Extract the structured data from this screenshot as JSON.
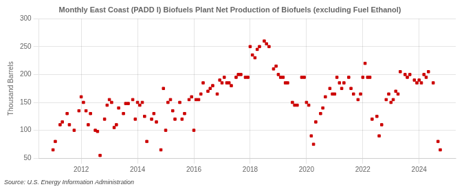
{
  "chart_data": {
    "type": "scatter",
    "title": "Monthly East Coast (PADD I) Biofuels Plant Net Production of Biofuels (excluding Fuel Ethanol)",
    "ylabel": "Thousand Barrels",
    "source": "Source: U.S. Energy Information Administration",
    "color": "#cc0000",
    "marker": "square",
    "grid": true,
    "ylim": [
      50,
      300
    ],
    "yticks": [
      50,
      100,
      150,
      200,
      250,
      300
    ],
    "xlim": [
      2010.5,
      2025.3
    ],
    "xticks": [
      2012,
      2014,
      2016,
      2018,
      2020,
      2022,
      2024
    ],
    "x": [
      2011.0,
      2011.08,
      2011.25,
      2011.33,
      2011.5,
      2011.58,
      2011.75,
      2011.92,
      2012.0,
      2012.08,
      2012.17,
      2012.25,
      2012.33,
      2012.5,
      2012.58,
      2012.67,
      2012.83,
      2012.92,
      2013.0,
      2013.08,
      2013.17,
      2013.25,
      2013.33,
      2013.5,
      2013.58,
      2013.67,
      2013.83,
      2013.92,
      2014.0,
      2014.08,
      2014.17,
      2014.25,
      2014.33,
      2014.5,
      2014.58,
      2014.67,
      2014.83,
      2014.92,
      2015.0,
      2015.08,
      2015.17,
      2015.25,
      2015.33,
      2015.5,
      2015.58,
      2015.67,
      2015.83,
      2015.92,
      2016.0,
      2016.08,
      2016.17,
      2016.25,
      2016.33,
      2016.5,
      2016.58,
      2016.67,
      2016.83,
      2016.92,
      2017.0,
      2017.08,
      2017.17,
      2017.25,
      2017.33,
      2017.5,
      2017.58,
      2017.67,
      2017.83,
      2017.92,
      2018.0,
      2018.08,
      2018.17,
      2018.25,
      2018.33,
      2018.5,
      2018.58,
      2018.67,
      2018.83,
      2018.92,
      2019.0,
      2019.08,
      2019.17,
      2019.25,
      2019.33,
      2019.5,
      2019.58,
      2019.67,
      2019.83,
      2019.92,
      2020.0,
      2020.08,
      2020.17,
      2020.25,
      2020.33,
      2020.5,
      2020.58,
      2020.67,
      2020.83,
      2020.92,
      2021.0,
      2021.08,
      2021.17,
      2021.25,
      2021.33,
      2021.5,
      2021.58,
      2021.67,
      2021.83,
      2021.92,
      2022.0,
      2022.08,
      2022.17,
      2022.25,
      2022.33,
      2022.5,
      2022.58,
      2022.67,
      2022.83,
      2022.92,
      2023.0,
      2023.08,
      2023.17,
      2023.25,
      2023.33,
      2023.5,
      2023.58,
      2023.67,
      2023.83,
      2023.92,
      2024.0,
      2024.08,
      2024.17,
      2024.25,
      2024.33,
      2024.5,
      2024.67,
      2024.75
    ],
    "values": [
      65,
      80,
      110,
      115,
      130,
      110,
      100,
      135,
      160,
      150,
      135,
      110,
      130,
      100,
      98,
      55,
      120,
      145,
      155,
      150,
      105,
      110,
      140,
      130,
      148,
      148,
      155,
      120,
      150,
      145,
      150,
      125,
      80,
      120,
      130,
      115,
      65,
      175,
      100,
      150,
      155,
      135,
      120,
      150,
      120,
      130,
      155,
      160,
      100,
      155,
      155,
      165,
      185,
      170,
      175,
      180,
      165,
      190,
      185,
      195,
      185,
      185,
      180,
      195,
      200,
      200,
      195,
      195,
      250,
      235,
      230,
      245,
      250,
      260,
      255,
      250,
      210,
      215,
      200,
      195,
      195,
      185,
      185,
      150,
      145,
      145,
      195,
      195,
      150,
      145,
      90,
      75,
      115,
      130,
      140,
      160,
      175,
      165,
      165,
      195,
      185,
      175,
      185,
      195,
      175,
      165,
      155,
      165,
      195,
      220,
      195,
      195,
      120,
      125,
      90,
      110,
      155,
      165,
      150,
      155,
      170,
      165,
      205,
      200,
      195,
      200,
      190,
      185,
      190,
      185,
      200,
      195,
      205,
      185,
      80,
      65
    ]
  }
}
